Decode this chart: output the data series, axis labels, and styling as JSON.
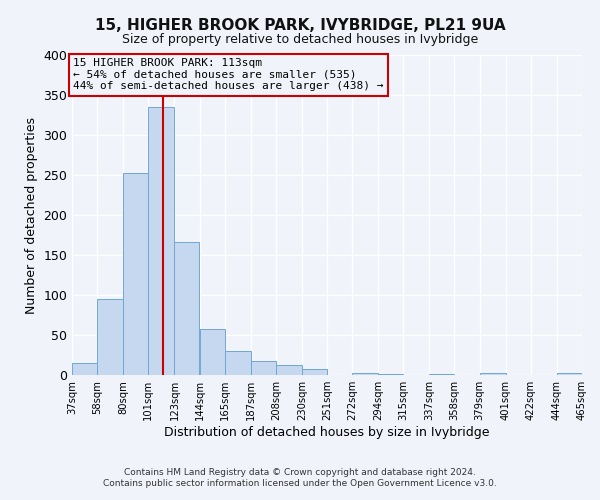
{
  "title": "15, HIGHER BROOK PARK, IVYBRIDGE, PL21 9UA",
  "subtitle": "Size of property relative to detached houses in Ivybridge",
  "xlabel": "Distribution of detached houses by size in Ivybridge",
  "ylabel": "Number of detached properties",
  "bar_values": [
    15,
    95,
    253,
    335,
    166,
    57,
    30,
    18,
    13,
    7,
    0,
    2,
    1,
    0,
    1,
    0,
    2,
    0,
    0,
    2
  ],
  "bin_edges": [
    37,
    58,
    80,
    101,
    123,
    144,
    165,
    187,
    208,
    230,
    251,
    272,
    294,
    315,
    337,
    358,
    379,
    401,
    422,
    444,
    465
  ],
  "tick_labels": [
    "37sqm",
    "58sqm",
    "80sqm",
    "101sqm",
    "123sqm",
    "144sqm",
    "165sqm",
    "187sqm",
    "208sqm",
    "230sqm",
    "251sqm",
    "272sqm",
    "294sqm",
    "315sqm",
    "337sqm",
    "358sqm",
    "379sqm",
    "401sqm",
    "422sqm",
    "444sqm",
    "465sqm"
  ],
  "bar_color": "#C5D8F0",
  "bar_edge_color": "#6FA8D4",
  "vline_x": 113,
  "vline_color": "#CC0000",
  "ylim": [
    0,
    400
  ],
  "yticks": [
    0,
    50,
    100,
    150,
    200,
    250,
    300,
    350,
    400
  ],
  "annotation_title": "15 HIGHER BROOK PARK: 113sqm",
  "annotation_line1": "← 54% of detached houses are smaller (535)",
  "annotation_line2": "44% of semi-detached houses are larger (438) →",
  "box_edge_color": "#CC0000",
  "footer1": "Contains HM Land Registry data © Crown copyright and database right 2024.",
  "footer2": "Contains public sector information licensed under the Open Government Licence v3.0.",
  "background_color": "#f0f4fa",
  "grid_color": "#ffffff",
  "figsize": [
    6.0,
    5.0
  ],
  "dpi": 100
}
